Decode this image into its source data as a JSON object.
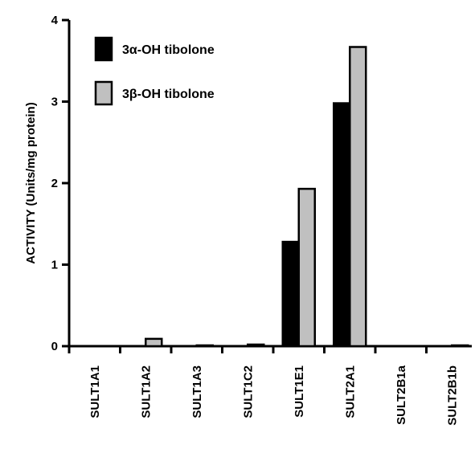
{
  "chart_data": {
    "type": "bar",
    "title": "",
    "xlabel": "",
    "ylabel": "ACTIVITY (Units/mg protein)",
    "ylim": [
      0,
      4
    ],
    "yticks": [
      0,
      1,
      2,
      3,
      4
    ],
    "ytick_labels": [
      "0",
      "1",
      "2",
      "3",
      "4"
    ],
    "categories": [
      "SULT1A1",
      "SULT1A2",
      "SULT1A3",
      "SULT1C2",
      "SULT1E1",
      "SULT2A1",
      "SULT2B1a",
      "SULT2B1b"
    ],
    "series": [
      {
        "name": "3α-OH tibolone",
        "color": "#000000",
        "values": [
          0,
          0,
          0,
          0,
          1.28,
          2.98,
          0,
          0
        ]
      },
      {
        "name": "3β-OH tibolone",
        "color": "#c0c0c0",
        "values": [
          0,
          0.09,
          0.01,
          0.02,
          1.93,
          3.67,
          0,
          0.01
        ]
      }
    ],
    "legend": {
      "placement": "top-left",
      "items": [
        "3α-OH tibolone",
        "3β-OH tibolone"
      ]
    },
    "grid": false
  }
}
